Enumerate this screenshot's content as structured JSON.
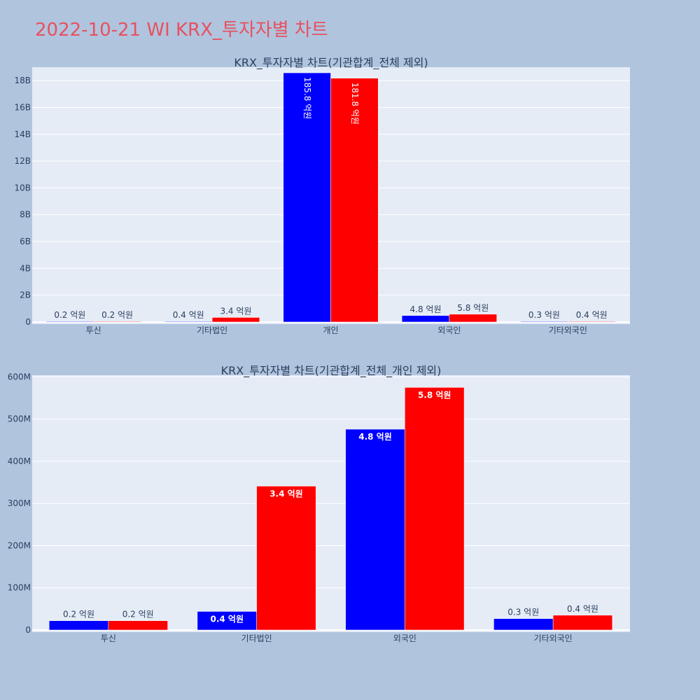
{
  "page": {
    "title": "2022-10-21 WI KRX_투자자별 차트",
    "background": "#b0c4de",
    "title_color": "#e8515f",
    "plot_background": "#e5ecf6",
    "gridline_color": "#ffffff",
    "series_colors": [
      "#0000ff",
      "#ff0000"
    ]
  },
  "chart_data": [
    {
      "type": "bar",
      "title": "KRX_투자자별 차트(기관합계_전체 제외)",
      "categories": [
        "투신",
        "기타법인",
        "개인",
        "외국인",
        "기타외국인"
      ],
      "series": [
        {
          "color": "#0000ff",
          "values": [
            20000000,
            40000000,
            18580000000,
            480000000,
            30000000
          ],
          "labels": [
            "0.2 억원",
            "0.4 억원",
            "185.8 억원",
            "4.8 억원",
            "0.3 억원"
          ]
        },
        {
          "color": "#ff0000",
          "values": [
            20000000,
            340000000,
            18180000000,
            580000000,
            40000000
          ],
          "labels": [
            "0.2 억원",
            "3.4 억원",
            "181.8 억원",
            "5.8 억원",
            "0.4 억원"
          ]
        }
      ],
      "yticks": [
        "0",
        "2B",
        "4B",
        "6B",
        "8B",
        "10B",
        "12B",
        "14B",
        "16B",
        "18B"
      ],
      "ylim": [
        0,
        19000000000
      ],
      "grid": true,
      "legend": "none"
    },
    {
      "type": "bar",
      "title": "KRX_투자자별 차트(기관합계_전체_개인 제외)",
      "categories": [
        "투신",
        "기타법인",
        "외국인",
        "기타외국인"
      ],
      "series": [
        {
          "color": "#0000ff",
          "values": [
            22000000,
            44000000,
            476000000,
            27000000
          ],
          "labels": [
            "0.2 억원",
            "0.4 억원",
            "4.8 억원",
            "0.3 억원"
          ]
        },
        {
          "color": "#ff0000",
          "values": [
            22000000,
            341000000,
            575000000,
            35000000
          ],
          "labels": [
            "0.2 억원",
            "3.4 억원",
            "5.8 억원",
            "0.4 억원"
          ]
        }
      ],
      "yticks": [
        "0",
        "100M",
        "200M",
        "300M",
        "400M",
        "500M",
        "600M"
      ],
      "ylim": [
        0,
        604000000
      ],
      "grid": true,
      "legend": "none"
    }
  ]
}
